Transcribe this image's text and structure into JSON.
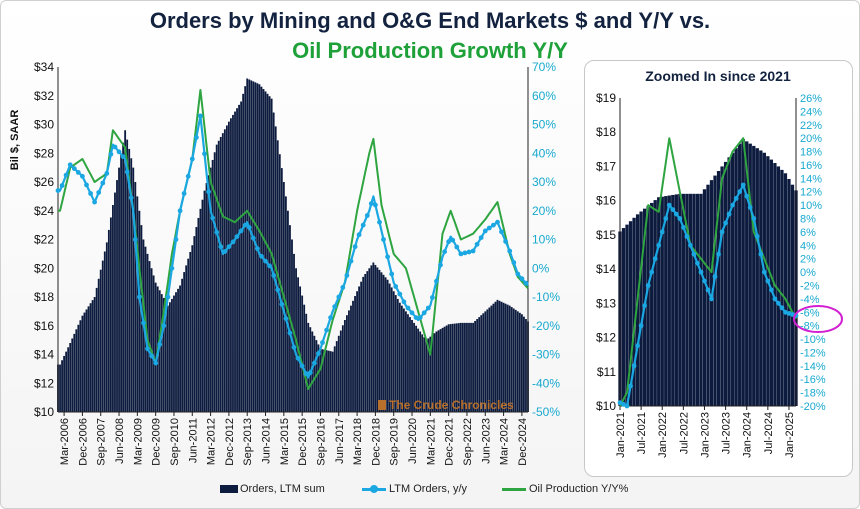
{
  "title": {
    "line1": "Orders by Mining and O&G End Markets $ and Y/Y vs.",
    "line2": "Oil Production Growth Y/Y"
  },
  "inset_title": "Zoomed In since 2021",
  "watermark": "The Crude Chronicles",
  "ylabel": "Bil $, SAAR",
  "legend": {
    "orders": "Orders, LTM sum",
    "ltm": "LTM Orders, y/y",
    "oil": "Oil Production Y/Y%"
  },
  "colors": {
    "orders": "#0d1b3e",
    "ltm": "#1ba7e2",
    "oil": "#2fa541",
    "right_axis": "#19a9cf",
    "highlight": "#d21fd2"
  },
  "chart_data": [
    {
      "type": "bar",
      "title": "Orders by Mining and O&G End Markets $ and Y/Y vs. Oil Production Growth Y/Y",
      "x_start": "2005-12",
      "x_end": "2025-03",
      "ylim_left": [
        10,
        34
      ],
      "ylim_right": [
        -50,
        70
      ],
      "yticks_left": [
        "$10",
        "$12",
        "$14",
        "$16",
        "$18",
        "$20",
        "$22",
        "$24",
        "$26",
        "$28",
        "$30",
        "$32",
        "$34"
      ],
      "yticks_right": [
        "-50%",
        "-40%",
        "-30%",
        "-20%",
        "-10%",
        "0%",
        "10%",
        "20%",
        "30%",
        "40%",
        "50%",
        "60%",
        "70%"
      ],
      "xticks": [
        "Mar-2006",
        "Dec-2006",
        "Sep-2007",
        "Jun-2008",
        "Mar-2009",
        "Dec-2009",
        "Sep-2010",
        "Jun-2011",
        "Mar-2012",
        "Dec-2012",
        "Sep-2013",
        "Jun-2014",
        "Mar-2015",
        "Dec-2015",
        "Sep-2016",
        "Jun-2017",
        "Mar-2018",
        "Dec-2018",
        "Sep-2019",
        "Jun-2020",
        "Mar-2021",
        "Dec-2021",
        "Sep-2022",
        "Jun-2023",
        "Mar-2024",
        "Dec-2024"
      ],
      "series": [
        {
          "name": "Orders, LTM sum",
          "axis": "left",
          "points": [
            [
              "2006-01",
              13.3
            ],
            [
              "2006-06",
              14.8
            ],
            [
              "2006-12",
              16.7
            ],
            [
              "2007-06",
              18.0
            ],
            [
              "2007-12",
              21.8
            ],
            [
              "2008-06",
              27.0
            ],
            [
              "2008-09",
              29.6
            ],
            [
              "2009-01",
              27.0
            ],
            [
              "2009-06",
              22.0
            ],
            [
              "2009-12",
              19.0
            ],
            [
              "2010-06",
              17.4
            ],
            [
              "2010-12",
              18.8
            ],
            [
              "2011-06",
              21.6
            ],
            [
              "2011-12",
              25.4
            ],
            [
              "2012-06",
              28.6
            ],
            [
              "2012-12",
              30.2
            ],
            [
              "2013-06",
              31.6
            ],
            [
              "2013-09",
              33.2
            ],
            [
              "2014-03",
              32.8
            ],
            [
              "2014-09",
              31.8
            ],
            [
              "2015-03",
              26.0
            ],
            [
              "2015-09",
              20.0
            ],
            [
              "2016-03",
              16.2
            ],
            [
              "2016-09",
              14.4
            ],
            [
              "2017-03",
              14.2
            ],
            [
              "2017-09",
              16.4
            ],
            [
              "2018-06",
              19.4
            ],
            [
              "2018-11",
              20.4
            ],
            [
              "2019-06",
              19.2
            ],
            [
              "2019-12",
              17.6
            ],
            [
              "2020-06",
              16.4
            ],
            [
              "2021-01",
              15.0
            ],
            [
              "2021-06",
              15.6
            ],
            [
              "2021-12",
              16.1
            ],
            [
              "2022-06",
              16.2
            ],
            [
              "2022-12",
              16.2
            ],
            [
              "2023-06",
              17.0
            ],
            [
              "2023-12",
              17.8
            ],
            [
              "2024-06",
              17.4
            ],
            [
              "2024-12",
              16.8
            ],
            [
              "2025-03",
              16.3
            ]
          ]
        },
        {
          "name": "LTM Orders, y/y",
          "axis": "right",
          "points": [
            [
              "2006-01",
              27
            ],
            [
              "2006-06",
              36
            ],
            [
              "2006-12",
              32
            ],
            [
              "2007-06",
              23
            ],
            [
              "2007-12",
              33
            ],
            [
              "2008-03",
              43
            ],
            [
              "2008-09",
              38
            ],
            [
              "2009-01",
              20
            ],
            [
              "2009-04",
              -10
            ],
            [
              "2009-08",
              -28
            ],
            [
              "2009-12",
              -33
            ],
            [
              "2010-04",
              -20
            ],
            [
              "2010-08",
              0
            ],
            [
              "2010-12",
              20
            ],
            [
              "2011-06",
              38
            ],
            [
              "2011-10",
              53
            ],
            [
              "2012-03",
              20
            ],
            [
              "2012-09",
              5
            ],
            [
              "2013-03",
              10
            ],
            [
              "2013-09",
              16
            ],
            [
              "2014-03",
              5
            ],
            [
              "2014-09",
              0
            ],
            [
              "2015-03",
              -15
            ],
            [
              "2015-09",
              -30
            ],
            [
              "2016-03",
              -38
            ],
            [
              "2016-09",
              -28
            ],
            [
              "2017-03",
              -15
            ],
            [
              "2017-09",
              -5
            ],
            [
              "2018-03",
              10
            ],
            [
              "2018-09",
              20
            ],
            [
              "2018-11",
              25
            ],
            [
              "2019-03",
              13
            ],
            [
              "2019-09",
              -5
            ],
            [
              "2020-03",
              -13
            ],
            [
              "2020-09",
              -18
            ],
            [
              "2021-03",
              -13
            ],
            [
              "2021-09",
              4
            ],
            [
              "2022-01",
              11
            ],
            [
              "2022-06",
              5
            ],
            [
              "2022-12",
              6
            ],
            [
              "2023-06",
              13
            ],
            [
              "2023-12",
              16
            ],
            [
              "2024-06",
              6
            ],
            [
              "2024-10",
              -2
            ],
            [
              "2025-03",
              -6
            ]
          ]
        },
        {
          "name": "Oil Production Y/Y%",
          "axis": "right",
          "points": [
            [
              "2006-01",
              20
            ],
            [
              "2006-06",
              35
            ],
            [
              "2006-12",
              38
            ],
            [
              "2007-06",
              30
            ],
            [
              "2007-12",
              33
            ],
            [
              "2008-03",
              48
            ],
            [
              "2008-09",
              42
            ],
            [
              "2009-01",
              20
            ],
            [
              "2009-04",
              0
            ],
            [
              "2009-08",
              -25
            ],
            [
              "2009-12",
              -33
            ],
            [
              "2010-04",
              -15
            ],
            [
              "2010-08",
              5
            ],
            [
              "2010-12",
              20
            ],
            [
              "2011-06",
              38
            ],
            [
              "2011-10",
              62
            ],
            [
              "2012-03",
              30
            ],
            [
              "2012-09",
              18
            ],
            [
              "2013-03",
              16
            ],
            [
              "2013-09",
              20
            ],
            [
              "2014-03",
              13
            ],
            [
              "2014-09",
              5
            ],
            [
              "2015-03",
              -10
            ],
            [
              "2015-09",
              -25
            ],
            [
              "2016-03",
              -42
            ],
            [
              "2016-09",
              -35
            ],
            [
              "2017-03",
              -18
            ],
            [
              "2017-09",
              -5
            ],
            [
              "2018-03",
              20
            ],
            [
              "2018-09",
              40
            ],
            [
              "2018-11",
              45
            ],
            [
              "2019-03",
              22
            ],
            [
              "2019-09",
              5
            ],
            [
              "2020-03",
              0
            ],
            [
              "2020-09",
              -15
            ],
            [
              "2021-03",
              -30
            ],
            [
              "2021-09",
              12
            ],
            [
              "2022-01",
              20
            ],
            [
              "2022-06",
              10
            ],
            [
              "2022-12",
              12
            ],
            [
              "2023-06",
              17
            ],
            [
              "2023-12",
              23
            ],
            [
              "2024-06",
              5
            ],
            [
              "2024-10",
              -3
            ],
            [
              "2025-03",
              -7
            ]
          ]
        }
      ]
    },
    {
      "type": "bar",
      "title": "Zoomed In since 2021",
      "x_start": "2021-01",
      "x_end": "2025-03",
      "ylim_left": [
        10,
        19
      ],
      "ylim_right": [
        -20,
        26
      ],
      "yticks_left": [
        "$10",
        "$11",
        "$12",
        "$13",
        "$14",
        "$15",
        "$16",
        "$17",
        "$18",
        "$19"
      ],
      "yticks_right": [
        "-20%",
        "-18%",
        "-16%",
        "-14%",
        "-12%",
        "-10%",
        "-8%",
        "-6%",
        "-4%",
        "-2%",
        "0%",
        "2%",
        "4%",
        "6%",
        "8%",
        "10%",
        "12%",
        "14%",
        "16%",
        "18%",
        "20%",
        "22%",
        "24%",
        "26%"
      ],
      "xticks": [
        "Jan-2021",
        "Jul-2021",
        "Jan-2022",
        "Jul-2022",
        "Jan-2023",
        "Jul-2023",
        "Jan-2024",
        "Jul-2024",
        "Jan-2025"
      ],
      "highlight_range": [
        "-6%",
        "-8%"
      ],
      "series": [
        {
          "name": "Orders, LTM sum",
          "axis": "left",
          "points": [
            [
              "2021-01",
              15.1
            ],
            [
              "2021-06",
              15.6
            ],
            [
              "2021-12",
              16.1
            ],
            [
              "2022-06",
              16.2
            ],
            [
              "2022-12",
              16.2
            ],
            [
              "2023-06",
              17.0
            ],
            [
              "2023-12",
              17.8
            ],
            [
              "2024-06",
              17.4
            ],
            [
              "2024-12",
              16.8
            ],
            [
              "2025-03",
              16.3
            ]
          ]
        },
        {
          "name": "LTM Orders, y/y",
          "axis": "right",
          "points": [
            [
              "2021-01",
              -19.5
            ],
            [
              "2021-03",
              -20
            ],
            [
              "2021-06",
              -11
            ],
            [
              "2021-09",
              -2
            ],
            [
              "2021-12",
              4
            ],
            [
              "2022-03",
              10
            ],
            [
              "2022-06",
              8
            ],
            [
              "2022-09",
              4
            ],
            [
              "2022-12",
              0
            ],
            [
              "2023-03",
              -4
            ],
            [
              "2023-06",
              6
            ],
            [
              "2023-09",
              10
            ],
            [
              "2023-12",
              13
            ],
            [
              "2024-03",
              8
            ],
            [
              "2024-06",
              0
            ],
            [
              "2024-09",
              -4
            ],
            [
              "2024-12",
              -6
            ],
            [
              "2025-03",
              -6.5
            ]
          ]
        },
        {
          "name": "Oil Production Y/Y%",
          "axis": "right",
          "points": [
            [
              "2021-01",
              -20
            ],
            [
              "2021-03",
              -18
            ],
            [
              "2021-06",
              -4
            ],
            [
              "2021-09",
              10
            ],
            [
              "2021-12",
              9
            ],
            [
              "2022-03",
              20
            ],
            [
              "2022-06",
              12
            ],
            [
              "2022-09",
              4
            ],
            [
              "2022-12",
              2
            ],
            [
              "2023-03",
              0
            ],
            [
              "2023-06",
              14
            ],
            [
              "2023-09",
              18
            ],
            [
              "2023-12",
              20
            ],
            [
              "2024-03",
              6
            ],
            [
              "2024-06",
              2
            ],
            [
              "2024-09",
              -2
            ],
            [
              "2024-12",
              -4
            ],
            [
              "2025-03",
              -7
            ]
          ]
        }
      ]
    }
  ]
}
